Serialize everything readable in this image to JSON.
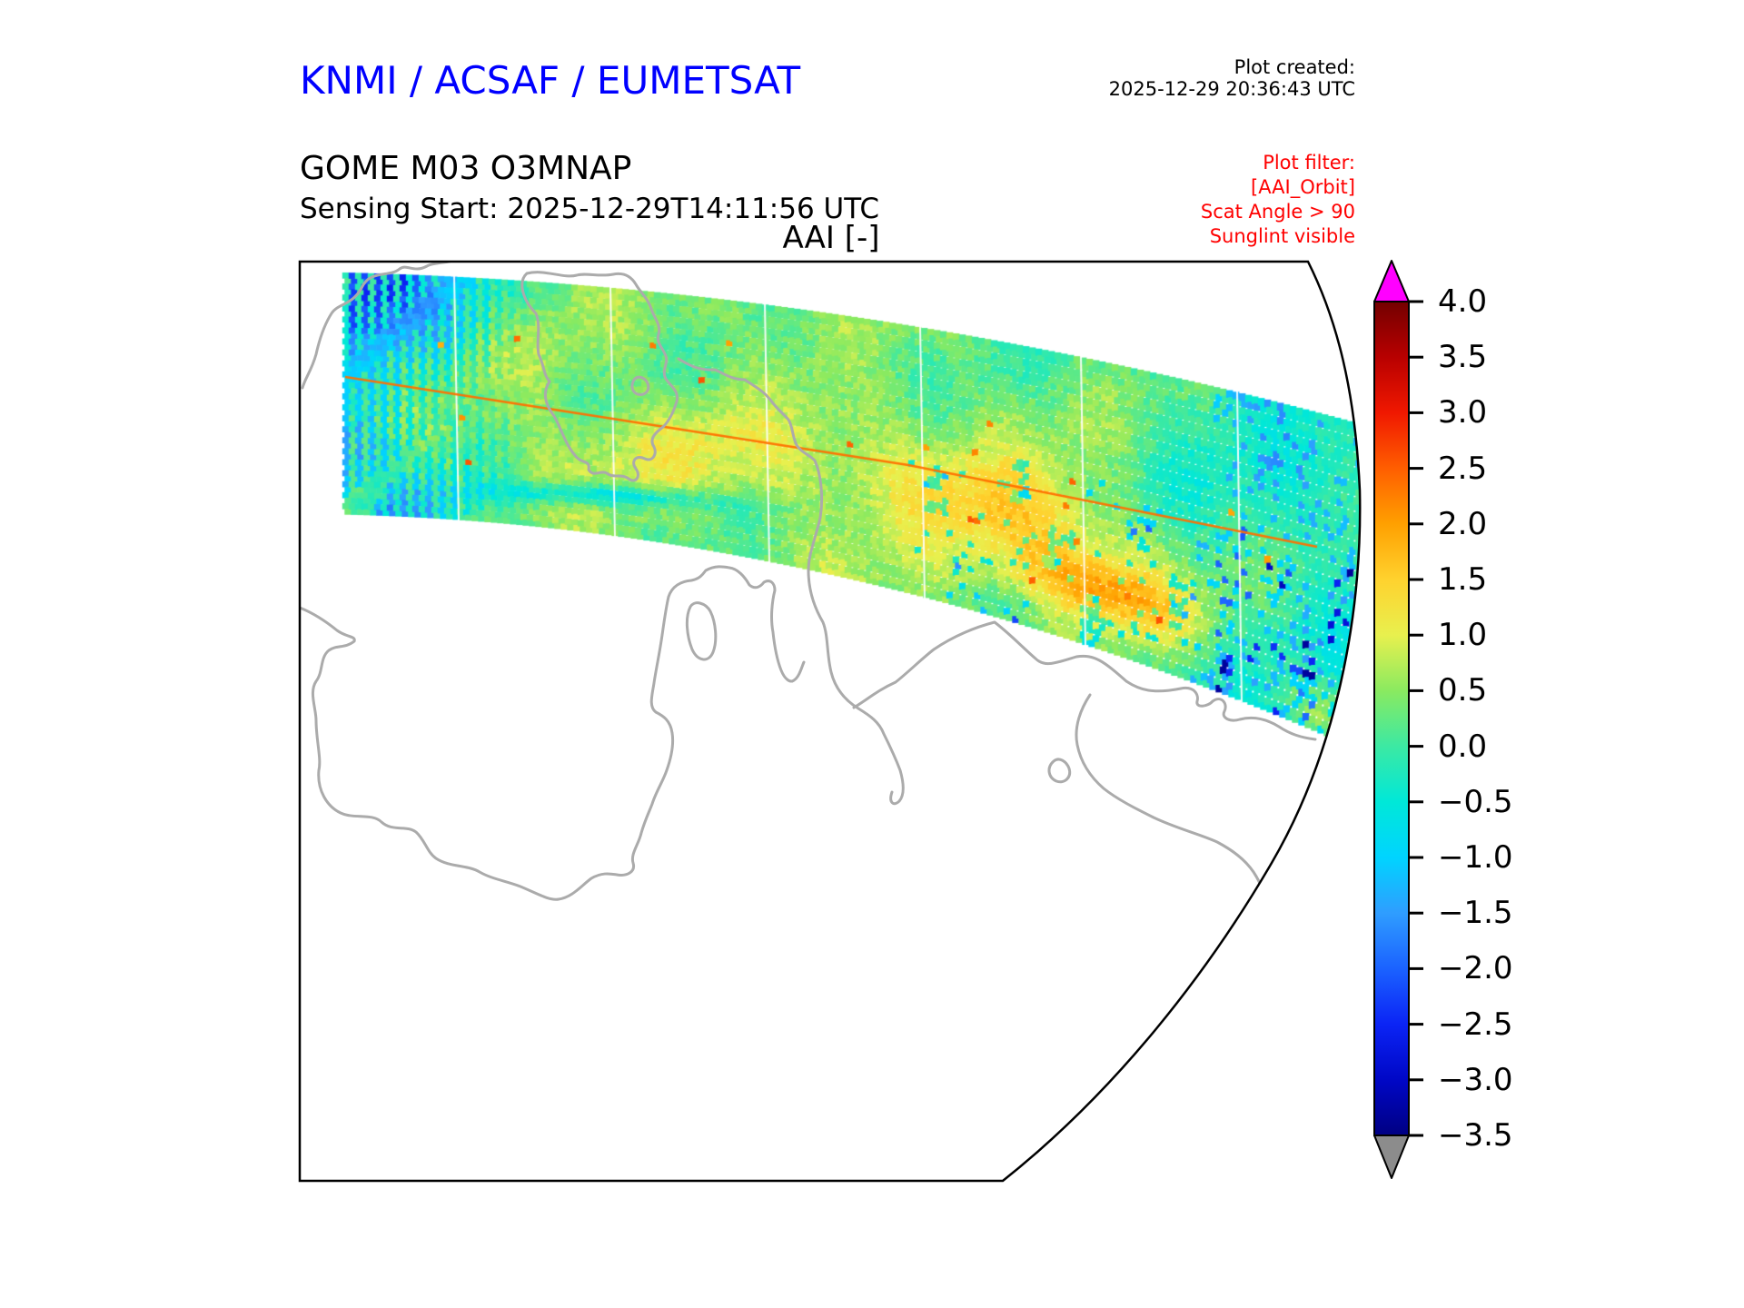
{
  "header": {
    "brand": "KNMI / ACSAF / EUMETSAT",
    "plot_created_label": "Plot created:",
    "plot_created_time": "2025-12-29 20:36:43 UTC",
    "product": "GOME M03 O3MNAP",
    "sensing_start": "Sensing Start: 2025-12-29T14:11:56 UTC"
  },
  "plot": {
    "title": "AAI [-]"
  },
  "filter": {
    "heading": "Plot filter:",
    "line1": "[AAI_Orbit]",
    "line2": "Scat Angle > 90",
    "line3": "Sunglint visible"
  },
  "colors": {
    "brand_blue": "#0000ff",
    "filter_red": "#ff0000",
    "coastline_gray": "#ababab",
    "frame_black": "#000000",
    "over_arrow": "#ff00ff",
    "under_arrow": "#8c8c8c"
  },
  "colorbar": {
    "tick_labels": [
      "4.0",
      "3.5",
      "3.0",
      "2.5",
      "2.0",
      "1.5",
      "1.0",
      "0.5",
      "0.0",
      "−0.5",
      "−1.0",
      "−1.5",
      "−2.0",
      "−2.5",
      "−3.0",
      "−3.5"
    ],
    "gradient_stops": [
      {
        "v": 4.0,
        "c": "#730000"
      },
      {
        "v": 3.5,
        "c": "#b80000"
      },
      {
        "v": 3.0,
        "c": "#f01800"
      },
      {
        "v": 2.5,
        "c": "#ff5e00"
      },
      {
        "v": 2.0,
        "c": "#ffa000"
      },
      {
        "v": 1.5,
        "c": "#ffd22e"
      },
      {
        "v": 1.0,
        "c": "#e8f04e"
      },
      {
        "v": 0.5,
        "c": "#8aea60"
      },
      {
        "v": 0.0,
        "c": "#3ce9a3"
      },
      {
        "v": -0.5,
        "c": "#00e8d8"
      },
      {
        "v": -1.0,
        "c": "#00d4ff"
      },
      {
        "v": -1.5,
        "c": "#2f9dff"
      },
      {
        "v": -2.0,
        "c": "#1b62ff"
      },
      {
        "v": -2.5,
        "c": "#0b24f5"
      },
      {
        "v": -3.0,
        "c": "#0007c6"
      },
      {
        "v": -3.5,
        "c": "#000082"
      }
    ]
  },
  "chart_data": {
    "type": "heatmap",
    "title": "AAI [-]",
    "subtitle": "GOME M03 O3MNAP satellite swath of Absorbing Aerosol Index on a perspective map projection",
    "value_range": [
      -3.5,
      4.0
    ],
    "colorbar_ticks": [
      4.0,
      3.5,
      3.0,
      2.5,
      2.0,
      1.5,
      1.0,
      0.5,
      0.0,
      -0.5,
      -1.0,
      -1.5,
      -2.0,
      -2.5,
      -3.0,
      -3.5
    ],
    "colorbar_tick_step": 0.5,
    "over_range_color": "#ff00ff",
    "under_range_color": "#8c8c8c",
    "legend_position": "right vertical colorbar with out-of-range arrows",
    "grid": false,
    "swath_summary": {
      "typical_value": 0.3,
      "dominant_color": "green (AAI near 0 to 0.5)",
      "features": [
        "dark blue streaks (AAI -1.5 to -3) in upper-left corner of swath",
        "thin orange sunglint line (AAI > 2) crossing the whole swath diagonally",
        "yellow patches (AAI about 1) through swath center",
        "orange blob (AAI about 2) at center-right around map x 1150-1300",
        "turquoise/cyan region with blue speckles (AAI -0.5 to -1.5) on the right third",
        "white vertical granule seams splitting the swath into segments"
      ]
    }
  }
}
